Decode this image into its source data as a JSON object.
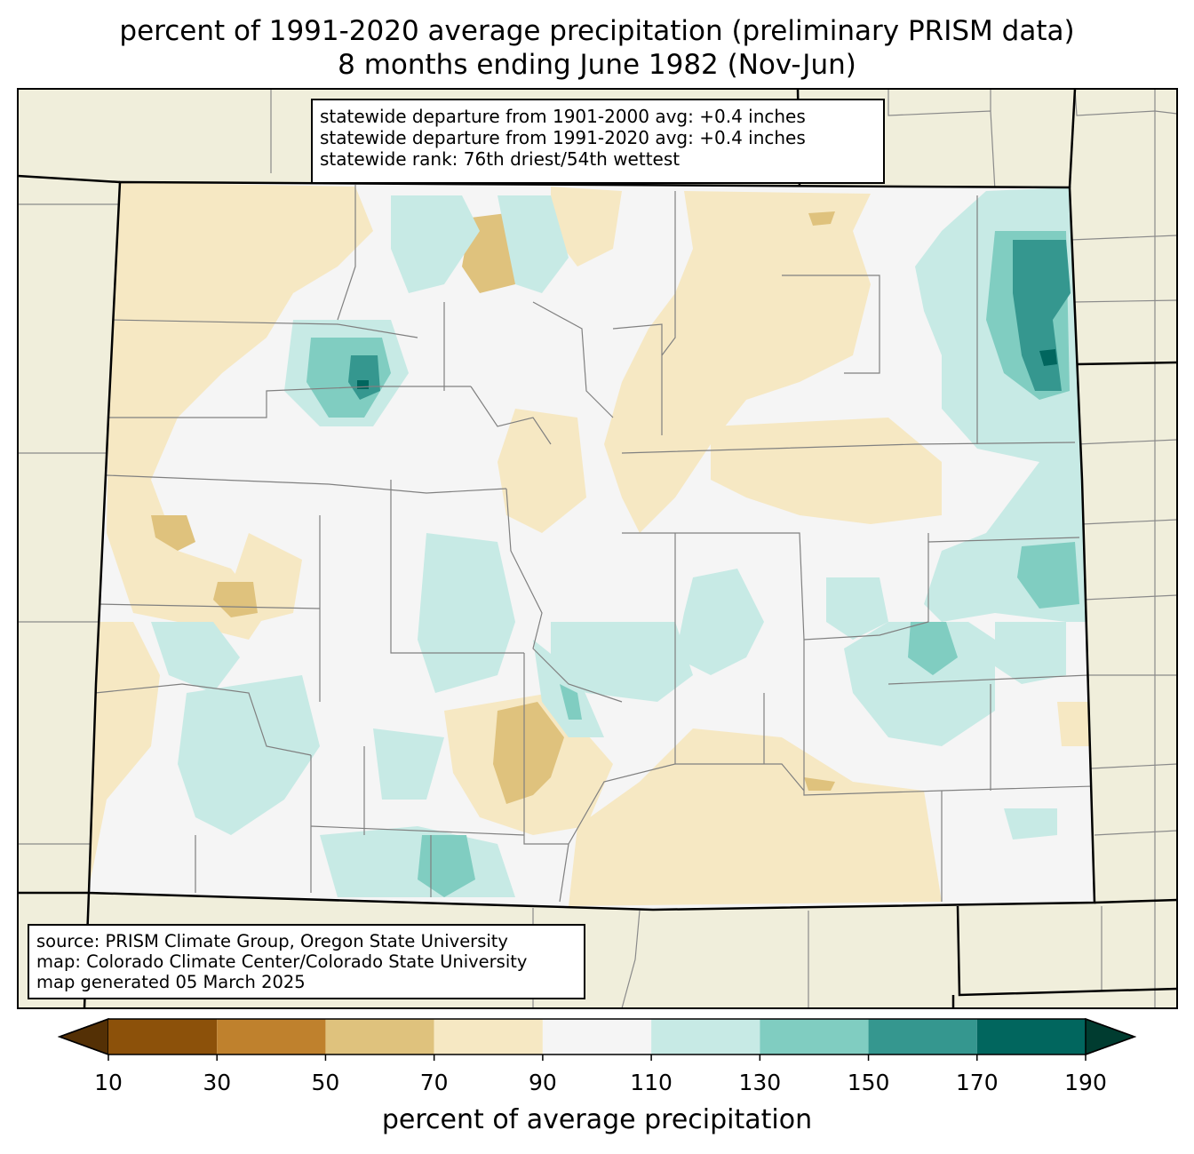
{
  "title": {
    "line1": "percent of 1991-2020 average precipitation (preliminary PRISM data)",
    "line2": "8 months ending June 1982 (Nov-Jun)"
  },
  "stats": {
    "line1": "statewide departure from 1901-2000 avg: +0.4 inches",
    "line2": "statewide departure from 1991-2020 avg: +0.4 inches",
    "line3": "statewide rank: 76th driest/54th wettest"
  },
  "source": {
    "line1": "source: PRISM Climate Group, Oregon State University",
    "line2": "map: Colorado Climate Center/Colorado State University",
    "line3": "map generated 05 March 2025"
  },
  "colorbar": {
    "label": "percent of average precipitation",
    "ticks": [
      "10",
      "30",
      "50",
      "70",
      "90",
      "110",
      "130",
      "150",
      "170",
      "190"
    ],
    "under_color": "#543005",
    "over_color": "#003c30",
    "colors": [
      "#8c510a",
      "#bf812d",
      "#dfc27d",
      "#f6e8c3",
      "#f5f5f5",
      "#c7eae5",
      "#80cdc1",
      "#35978f",
      "#01665e"
    ]
  },
  "colors": {
    "background_land": "#f0eedb",
    "normal": "#f5f5f5",
    "dry_70_90": "#f6e8c3",
    "dry_50_70": "#dfc27d",
    "wet_110_130": "#c7eae5",
    "wet_130_150": "#80cdc1",
    "wet_150_170": "#35978f",
    "wet_170_190": "#01665e"
  }
}
